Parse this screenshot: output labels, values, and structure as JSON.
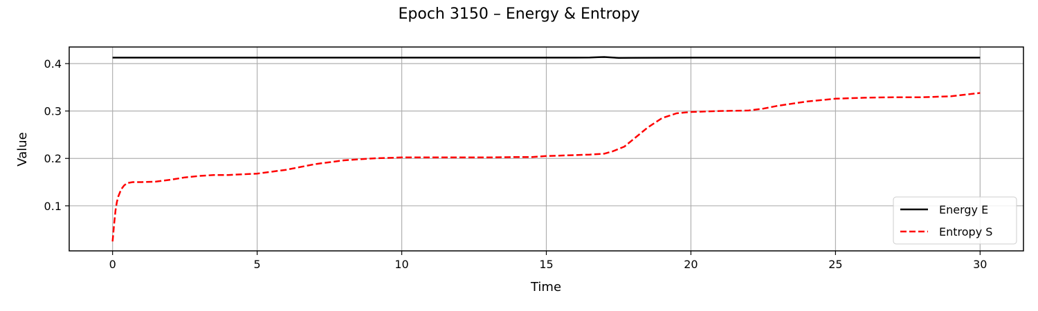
{
  "chart_data": {
    "type": "line",
    "title": "Epoch 3150 – Energy & Entropy",
    "xlabel": "Time",
    "ylabel": "Value",
    "xlim": [
      -1.5,
      31.5
    ],
    "ylim": [
      0.005,
      0.435
    ],
    "x_ticks": [
      0,
      5,
      10,
      15,
      20,
      25,
      30
    ],
    "x_tick_labels": [
      "0",
      "5",
      "10",
      "15",
      "20",
      "25",
      "30"
    ],
    "y_ticks": [
      0.1,
      0.2,
      0.3,
      0.4
    ],
    "y_tick_labels": [
      "0.1",
      "0.2",
      "0.3",
      "0.4"
    ],
    "grid": true,
    "legend_position": "lower-right",
    "series": [
      {
        "name": "Energy E",
        "color": "#000000",
        "dash": "solid",
        "x": [
          0,
          2,
          4,
          6,
          8,
          10,
          12,
          14,
          16,
          16.5,
          16.8,
          17,
          17.2,
          17.5,
          18,
          20,
          22,
          24,
          26,
          28,
          30
        ],
        "y": [
          0.4125,
          0.4125,
          0.4125,
          0.4125,
          0.4125,
          0.4125,
          0.4125,
          0.4125,
          0.4125,
          0.4127,
          0.4135,
          0.4138,
          0.4132,
          0.412,
          0.4122,
          0.4125,
          0.4125,
          0.4125,
          0.4125,
          0.4125,
          0.4125
        ]
      },
      {
        "name": "Entropy S",
        "color": "#ff0000",
        "dash": "dashed",
        "x": [
          0,
          0.05,
          0.1,
          0.15,
          0.2,
          0.3,
          0.4,
          0.5,
          0.7,
          1,
          1.5,
          2,
          2.5,
          3,
          3.5,
          4,
          5,
          6,
          7,
          8,
          9,
          10,
          11,
          12,
          13,
          14,
          14.5,
          15,
          16,
          16.5,
          17,
          17.3,
          17.7,
          18,
          18.5,
          19,
          19.5,
          20,
          21,
          22,
          22.5,
          23,
          24,
          25,
          26,
          27,
          28,
          29,
          30
        ],
        "y": [
          0.025,
          0.06,
          0.09,
          0.108,
          0.12,
          0.135,
          0.143,
          0.148,
          0.15,
          0.15,
          0.151,
          0.155,
          0.16,
          0.163,
          0.165,
          0.165,
          0.168,
          0.176,
          0.188,
          0.196,
          0.2,
          0.202,
          0.202,
          0.202,
          0.202,
          0.203,
          0.203,
          0.205,
          0.207,
          0.208,
          0.21,
          0.215,
          0.225,
          0.24,
          0.265,
          0.285,
          0.295,
          0.298,
          0.3,
          0.301,
          0.305,
          0.311,
          0.32,
          0.326,
          0.328,
          0.329,
          0.329,
          0.331,
          0.338
        ]
      }
    ]
  }
}
